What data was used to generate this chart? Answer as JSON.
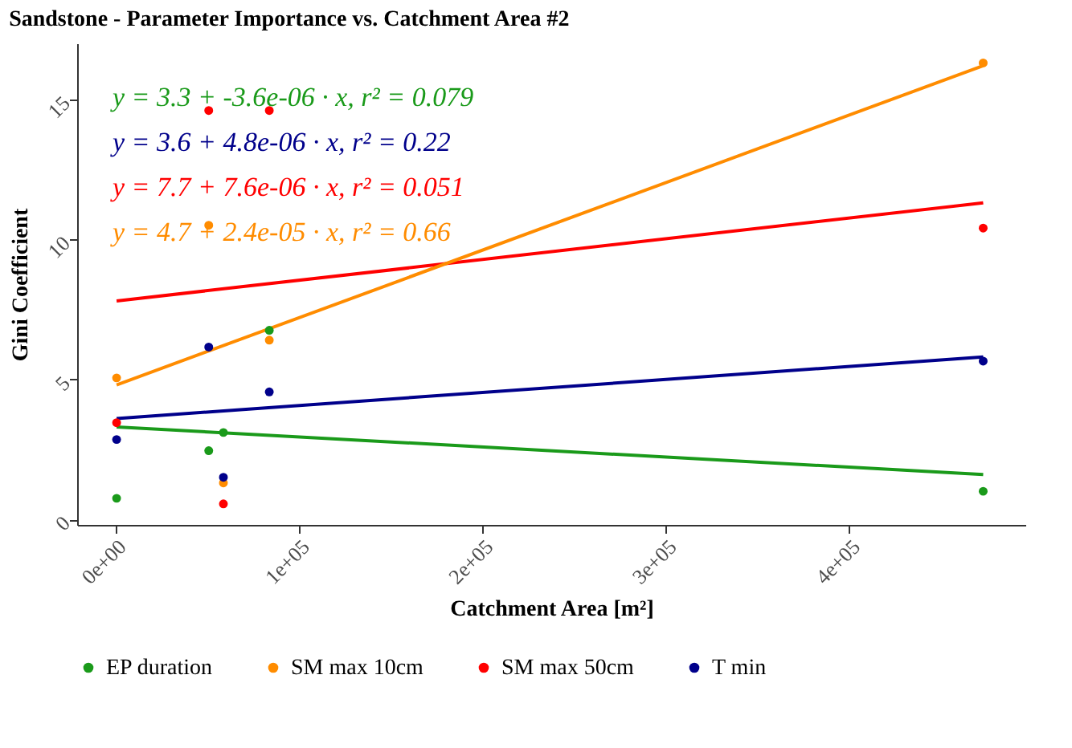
{
  "chart_data": {
    "type": "scatter",
    "title": "Sandstone - Parameter Importance vs. Catchment Area #2",
    "xlabel": "Catchment Area [m²]",
    "ylabel": "Gini Coefficient",
    "xlim": [
      -20700,
      496000
    ],
    "ylim": [
      -0.2,
      17.0
    ],
    "xticks": [
      {
        "value": 0,
        "label": "0e+00"
      },
      {
        "value": 100000,
        "label": "1e+05"
      },
      {
        "value": 200000,
        "label": "2e+05"
      },
      {
        "value": 300000,
        "label": "3e+05"
      },
      {
        "value": 400000,
        "label": "4e+05"
      }
    ],
    "yticks": [
      0,
      5,
      10,
      15
    ],
    "grid": false,
    "legend": "bottom",
    "line_style": "solid",
    "annotations": [
      "y = 3.3 + -3.6e-06 · x,  r² = 0.079",
      "y = 3.6 + 4.8e-06 · x,  r² = 0.22",
      "y = 7.7 + 7.6e-06 · x,  r² = 0.051",
      "y = 4.7 + 2.4e-05 · x,  r² = 0.66"
    ],
    "series": [
      {
        "name": "EP duration",
        "marker": "circle",
        "color": "#1a9a1a",
        "x": [
          800,
          51000,
          59000,
          84000,
          473000
        ],
        "values": [
          0.75,
          2.45,
          3.1,
          6.75,
          1.0
        ]
      },
      {
        "name": "SM max 10cm",
        "marker": "circle",
        "color": "#ff8c00",
        "x": [
          800,
          51000,
          59000,
          84000,
          473000
        ],
        "values": [
          5.05,
          10.5,
          1.3,
          6.4,
          16.3
        ]
      },
      {
        "name": "SM max 50cm",
        "marker": "circle",
        "color": "#ff0000",
        "x": [
          800,
          51000,
          59000,
          84000,
          473000
        ],
        "values": [
          3.45,
          14.6,
          0.55,
          14.6,
          10.4
        ]
      },
      {
        "name": "T min",
        "marker": "circle",
        "color": "#00008b",
        "x": [
          800,
          51000,
          59000,
          84000,
          473000
        ],
        "values": [
          2.85,
          6.15,
          1.5,
          4.55,
          5.65
        ]
      },
      {
        "type": "line",
        "color": "#1a9a1a",
        "x": [
          800,
          473000
        ],
        "values": [
          3.3,
          1.6
        ]
      },
      {
        "type": "line",
        "color": "#00008b",
        "x": [
          800,
          473000
        ],
        "values": [
          3.6,
          5.8
        ]
      },
      {
        "type": "line",
        "color": "#ff0000",
        "x": [
          800,
          473000
        ],
        "values": [
          7.8,
          11.3
        ]
      },
      {
        "type": "line",
        "color": "#ff8c00",
        "x": [
          800,
          473000
        ],
        "values": [
          4.8,
          16.2
        ]
      }
    ]
  }
}
